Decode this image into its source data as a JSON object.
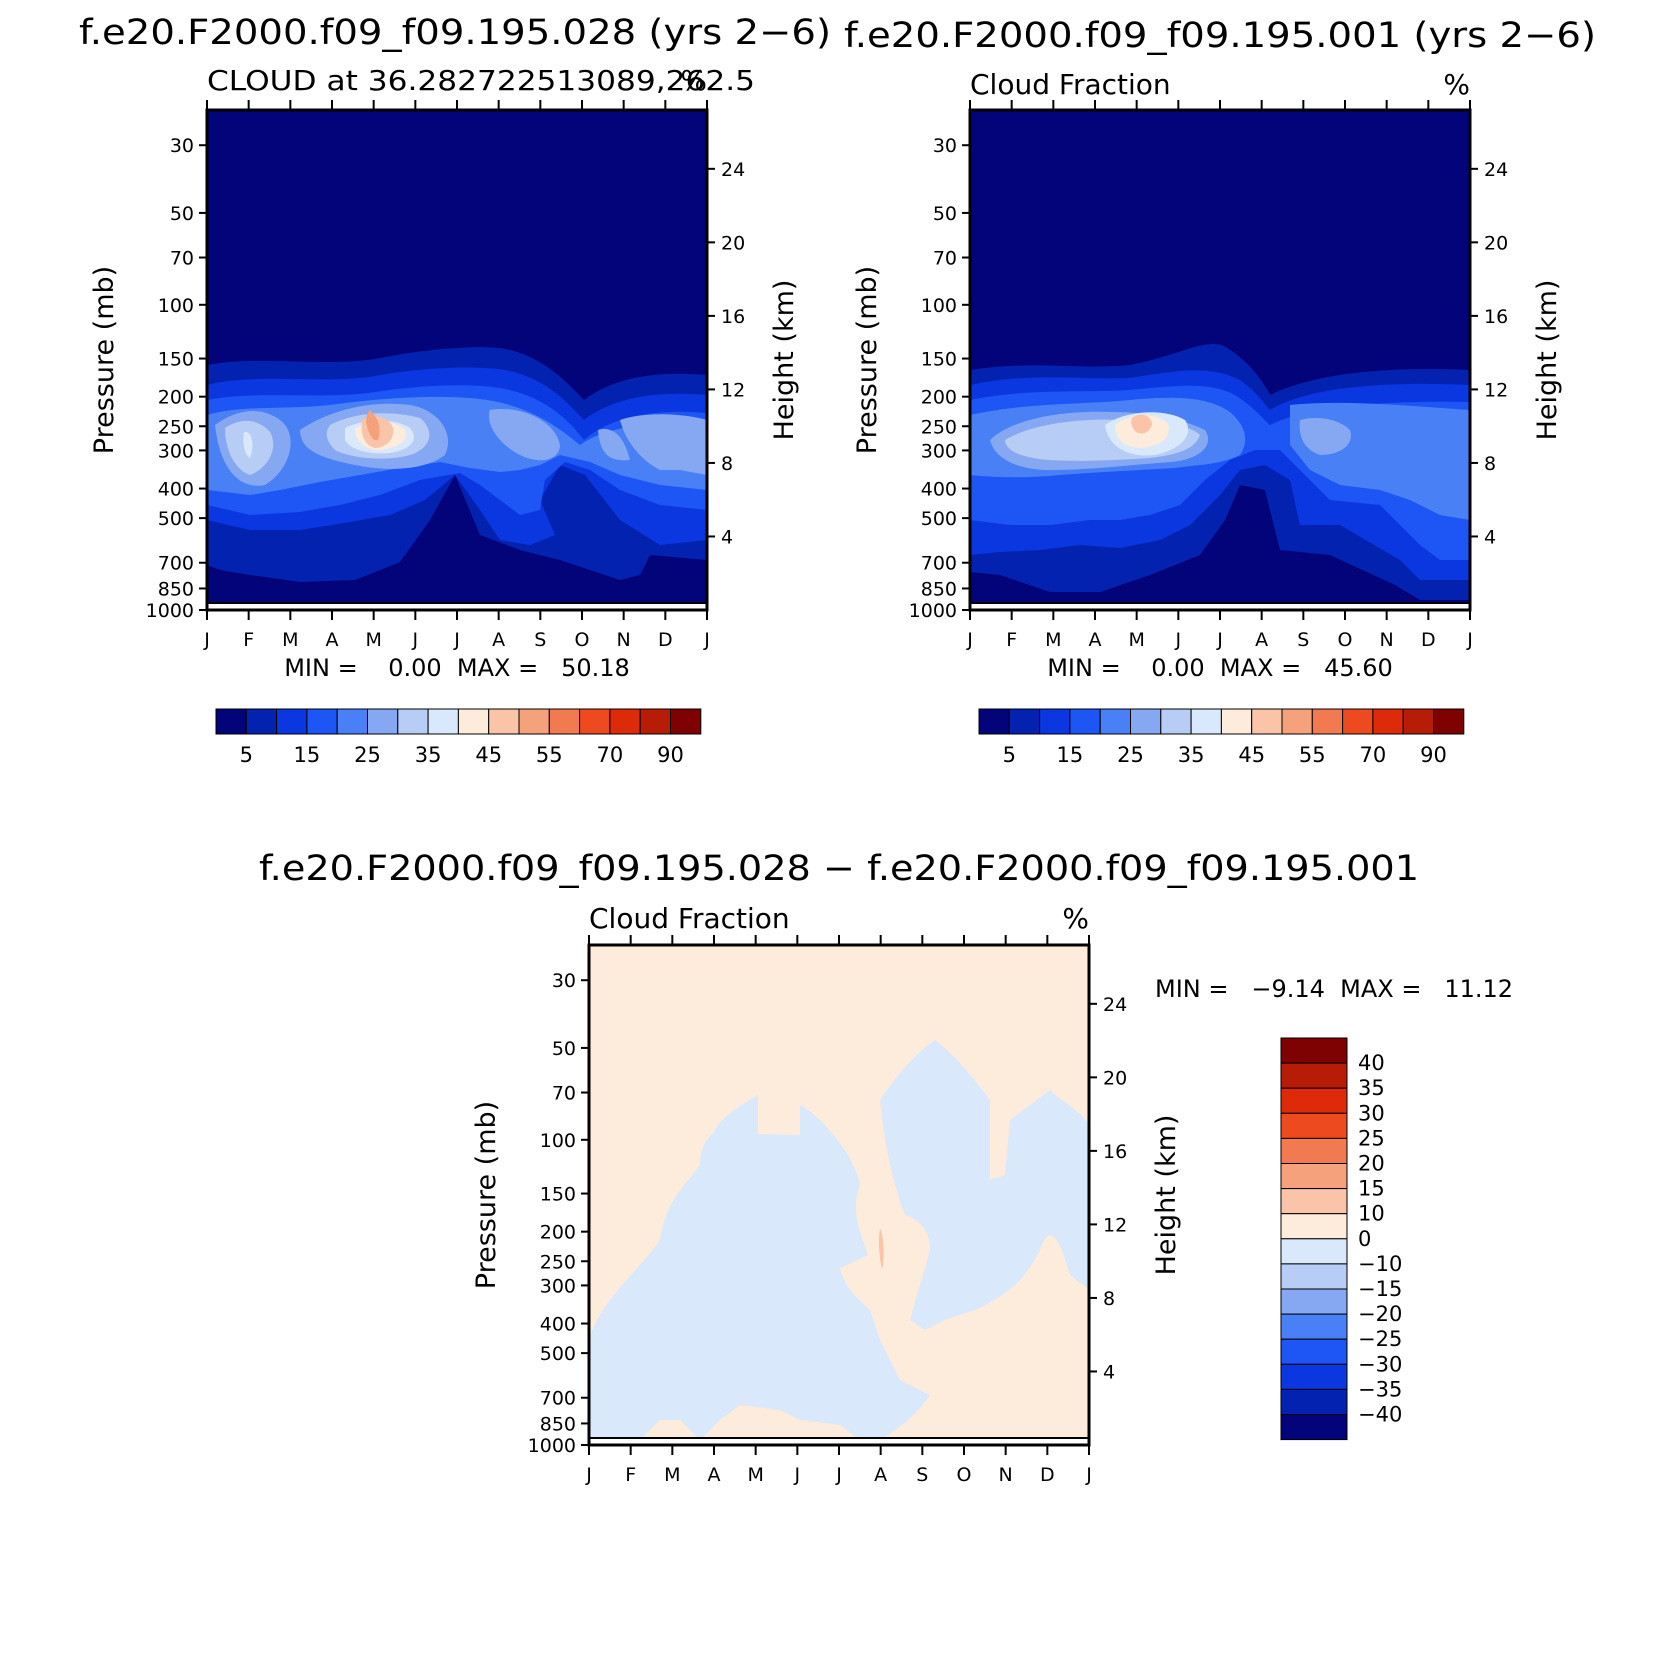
{
  "chart_data": [
    {
      "type": "heatmap",
      "title": "f.e20.F2000.f09_f09.195.028 (yrs 2−6)",
      "subtitle": "CLOUD at 36.282722513089,262.5",
      "units": "%",
      "xlabel": "",
      "ylabel": "Pressure (mb)",
      "ylabel_right": "Height (km)",
      "month_ticks": [
        "J",
        "F",
        "M",
        "A",
        "M",
        "J",
        "J",
        "A",
        "S",
        "O",
        "N",
        "D",
        "J"
      ],
      "pressure_ticks": [
        "30",
        "50",
        "70",
        "100",
        "150",
        "200",
        "250",
        "300",
        "400",
        "500",
        "700",
        "850",
        "1000"
      ],
      "height_ticks": [
        "24",
        "20",
        "16",
        "12",
        "8",
        "4"
      ],
      "minmax_text": "MIN =    0.00  MAX =   50.18",
      "min": 0.0,
      "max": 50.18,
      "colorbar_labels": [
        "5",
        "15",
        "25",
        "35",
        "45",
        "55",
        "70",
        "90"
      ],
      "colorbar_levels": [
        0,
        5,
        10,
        15,
        20,
        25,
        30,
        35,
        40,
        45,
        50,
        55,
        60,
        70,
        80,
        90,
        100
      ],
      "colorbar_colors": [
        "#03037a",
        "#0422b0",
        "#0a37e0",
        "#1e55f5",
        "#4a80f5",
        "#86a8f2",
        "#b7cdf5",
        "#d9e8fa",
        "#fdecdc",
        "#f9c4a8",
        "#f4a17c",
        "#f27a50",
        "#ee4a20",
        "#dd2a08",
        "#b71c06",
        "#7e0202"
      ]
    },
    {
      "type": "heatmap",
      "title": "f.e20.F2000.f09_f09.195.001 (yrs 2−6)",
      "subtitle": "Cloud Fraction",
      "units": "%",
      "xlabel": "",
      "ylabel": "Pressure (mb)",
      "ylabel_right": "Height (km)",
      "month_ticks": [
        "J",
        "F",
        "M",
        "A",
        "M",
        "J",
        "J",
        "A",
        "S",
        "O",
        "N",
        "D",
        "J"
      ],
      "pressure_ticks": [
        "30",
        "50",
        "70",
        "100",
        "150",
        "200",
        "250",
        "300",
        "400",
        "500",
        "700",
        "850",
        "1000"
      ],
      "height_ticks": [
        "24",
        "20",
        "16",
        "12",
        "8",
        "4"
      ],
      "minmax_text": "MIN =    0.00  MAX =   45.60",
      "min": 0.0,
      "max": 45.6,
      "colorbar_labels": [
        "5",
        "15",
        "25",
        "35",
        "45",
        "55",
        "70",
        "90"
      ],
      "colorbar_levels": [
        0,
        5,
        10,
        15,
        20,
        25,
        30,
        35,
        40,
        45,
        50,
        55,
        60,
        70,
        80,
        90,
        100
      ],
      "colorbar_colors": [
        "#03037a",
        "#0422b0",
        "#0a37e0",
        "#1e55f5",
        "#4a80f5",
        "#86a8f2",
        "#b7cdf5",
        "#d9e8fa",
        "#fdecdc",
        "#f9c4a8",
        "#f4a17c",
        "#f27a50",
        "#ee4a20",
        "#dd2a08",
        "#b71c06",
        "#7e0202"
      ]
    },
    {
      "type": "heatmap",
      "title": "f.e20.F2000.f09_f09.195.028 − f.e20.F2000.f09_f09.195.001",
      "subtitle": "Cloud Fraction",
      "units": "%",
      "xlabel": "",
      "ylabel": "Pressure (mb)",
      "ylabel_right": "Height (km)",
      "month_ticks": [
        "J",
        "F",
        "M",
        "A",
        "M",
        "J",
        "J",
        "A",
        "S",
        "O",
        "N",
        "D",
        "J"
      ],
      "pressure_ticks": [
        "30",
        "50",
        "70",
        "100",
        "150",
        "200",
        "250",
        "300",
        "400",
        "500",
        "700",
        "850",
        "1000"
      ],
      "height_ticks": [
        "24",
        "20",
        "16",
        "12",
        "8",
        "4"
      ],
      "minmax_text": "MIN =   −9.14  MAX =   11.12",
      "min": -9.14,
      "max": 11.12,
      "colorbar_labels": [
        "40",
        "35",
        "30",
        "25",
        "20",
        "15",
        "10",
        "0",
        "−10",
        "−15",
        "−20",
        "−25",
        "−30",
        "−35",
        "−40"
      ],
      "colorbar_colors_top_to_bottom": [
        "#7e0202",
        "#b71c06",
        "#dd2a08",
        "#ee4a20",
        "#f27a50",
        "#f4a17c",
        "#f9c4a8",
        "#fdecdc",
        "#d9e8fa",
        "#b7cdf5",
        "#86a8f2",
        "#4a80f5",
        "#1e55f5",
        "#0a37e0",
        "#0422b0",
        "#03037a"
      ]
    }
  ]
}
